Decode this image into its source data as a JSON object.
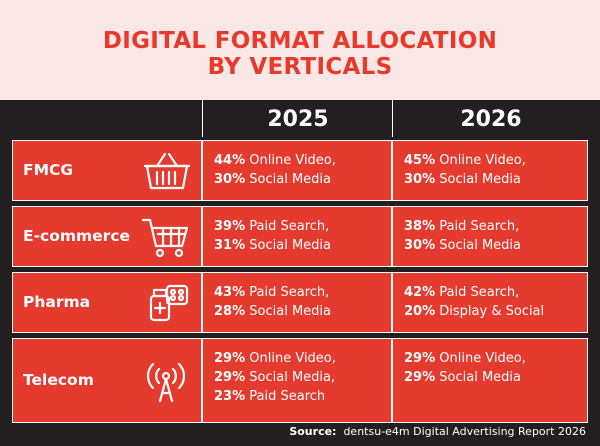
{
  "header": {
    "title_lines": [
      "DIGITAL FORMAT ALLOCATION",
      "BY VERTICALS"
    ]
  },
  "table": {
    "columns": [
      "2025",
      "2026"
    ],
    "rows": [
      {
        "vertical": "FMCG",
        "cells": [
          [
            {
              "pct": "44%",
              "label": "Online Video,"
            },
            {
              "pct": "30%",
              "label": "Social Media"
            }
          ],
          [
            {
              "pct": "45%",
              "label": "Online Video,"
            },
            {
              "pct": "30%",
              "label": "Social Media"
            }
          ]
        ]
      },
      {
        "vertical": "E-commerce",
        "cells": [
          [
            {
              "pct": "39%",
              "label": "Paid Search,"
            },
            {
              "pct": "31%",
              "label": "Social Media"
            }
          ],
          [
            {
              "pct": "38%",
              "label": "Paid Search,"
            },
            {
              "pct": "30%",
              "label": "Social Media"
            }
          ]
        ]
      },
      {
        "vertical": "Pharma",
        "cells": [
          [
            {
              "pct": "43%",
              "label": "Paid Search,"
            },
            {
              "pct": "28%",
              "label": "Social Media"
            }
          ],
          [
            {
              "pct": "42%",
              "label": "Paid Search,"
            },
            {
              "pct": "20%",
              "label": "Display & Social"
            }
          ]
        ]
      },
      {
        "vertical": "Telecom",
        "cells": [
          [
            {
              "pct": "29%",
              "label": "Online Video,"
            },
            {
              "pct": "29%",
              "label": "Social Media,"
            },
            {
              "pct": "23%",
              "label": "Paid Search"
            }
          ],
          [
            {
              "pct": "29%",
              "label": "Online Video,"
            },
            {
              "pct": "29%",
              "label": "Social Media"
            }
          ]
        ]
      }
    ]
  },
  "footer": {
    "source_label": "Source:",
    "source_text": "dentsu-e4m Digital Advertising Report 2026"
  }
}
